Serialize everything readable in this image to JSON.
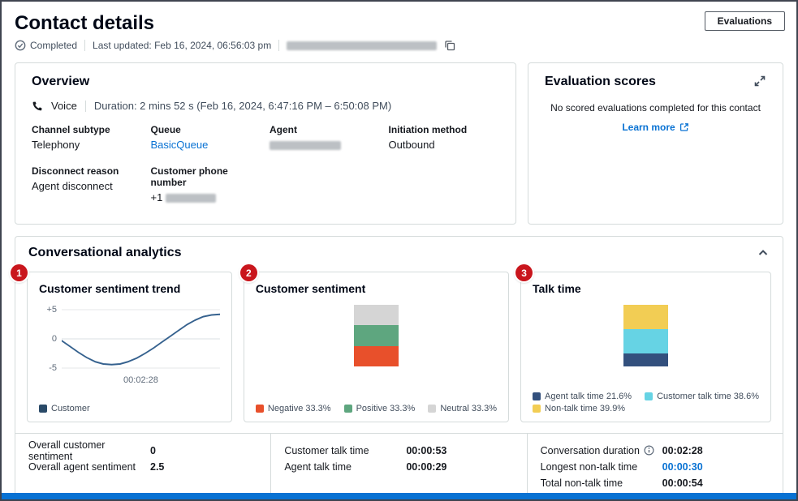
{
  "colors": {
    "link_blue": "#0972d3",
    "callout_red": "#c9161d",
    "footer_bar_blue": "#0972d3"
  },
  "page": {
    "title": "Contact details",
    "evaluations_button": "Evaluations",
    "status_badge": "Completed",
    "last_updated": "Last updated: Feb 16, 2024, 06:56:03 pm"
  },
  "overview": {
    "title": "Overview",
    "channel_type": "Voice",
    "duration": "Duration: 2 mins 52 s (Feb 16, 2024, 6:47:16 PM – 6:50:08 PM)",
    "fields": [
      {
        "label": "Channel subtype",
        "value": "Telephony"
      },
      {
        "label": "Queue",
        "value": "BasicQueue"
      },
      {
        "label": "Agent",
        "value": ""
      },
      {
        "label": "Initiation method",
        "value": "Outbound"
      },
      {
        "label": "Disconnect reason",
        "value": "Agent disconnect"
      },
      {
        "label": "Customer phone number",
        "value": "+1"
      }
    ]
  },
  "evaluation": {
    "title": "Evaluation scores",
    "empty_message": "No scored evaluations completed for this contact",
    "learn_more_label": "Learn more"
  },
  "analytics": {
    "title": "Conversational analytics",
    "callouts": [
      "1",
      "2",
      "3"
    ]
  },
  "chart_data": [
    {
      "type": "line",
      "title": "Customer sentiment trend",
      "ylim": [
        -5,
        5
      ],
      "y_tick_labels": [
        "+5",
        "0",
        "-5"
      ],
      "x_tick_labels": [
        "00:02:28"
      ],
      "grid": true,
      "legend_position": "bottom",
      "series": [
        {
          "name": "Customer",
          "color": "#35618e",
          "legend_color": "#2a4a68",
          "values": [
            -0.3,
            -1.3,
            -2.3,
            -3.2,
            -3.9,
            -4.3,
            -4.4,
            -4.3,
            -3.9,
            -3.3,
            -2.5,
            -1.6,
            -0.6,
            0.4,
            1.4,
            2.4,
            3.2,
            3.8,
            4.1,
            4.2
          ]
        }
      ]
    },
    {
      "type": "bar",
      "title": "Customer sentiment",
      "stacked": true,
      "legend_position": "bottom",
      "segments": [
        {
          "label": "Neutral 33.3%",
          "value": 33.3,
          "color": "#d5d5d5"
        },
        {
          "label": "Positive 33.3%",
          "value": 33.3,
          "color": "#5ea67f"
        },
        {
          "label": "Negative 33.3%",
          "value": 33.3,
          "color": "#e8502b"
        }
      ]
    },
    {
      "type": "bar",
      "title": "Talk time",
      "stacked": true,
      "legend_position": "bottom",
      "segments": [
        {
          "label": "Non-talk time 39.9%",
          "value": 39.9,
          "color": "#f2cd54"
        },
        {
          "label": "Customer talk time 38.6%",
          "value": 38.6,
          "color": "#66d3e4"
        },
        {
          "label": "Agent talk time 21.6%",
          "value": 21.6,
          "color": "#33507d"
        }
      ]
    }
  ],
  "summary": {
    "columns": [
      {
        "rows": [
          {
            "label": "Overall customer sentiment",
            "value": "0"
          },
          {
            "label": "Overall agent sentiment",
            "value": "2.5"
          }
        ]
      },
      {
        "rows": [
          {
            "label": "Customer talk time",
            "value": "00:00:53"
          },
          {
            "label": "Agent talk time",
            "value": "00:00:29"
          }
        ]
      },
      {
        "rows": [
          {
            "label": "Conversation duration",
            "value": "00:02:28"
          },
          {
            "label": "Longest non-talk time",
            "value": "00:00:30"
          },
          {
            "label": "Total non-talk time",
            "value": "00:00:54"
          }
        ]
      }
    ]
  }
}
